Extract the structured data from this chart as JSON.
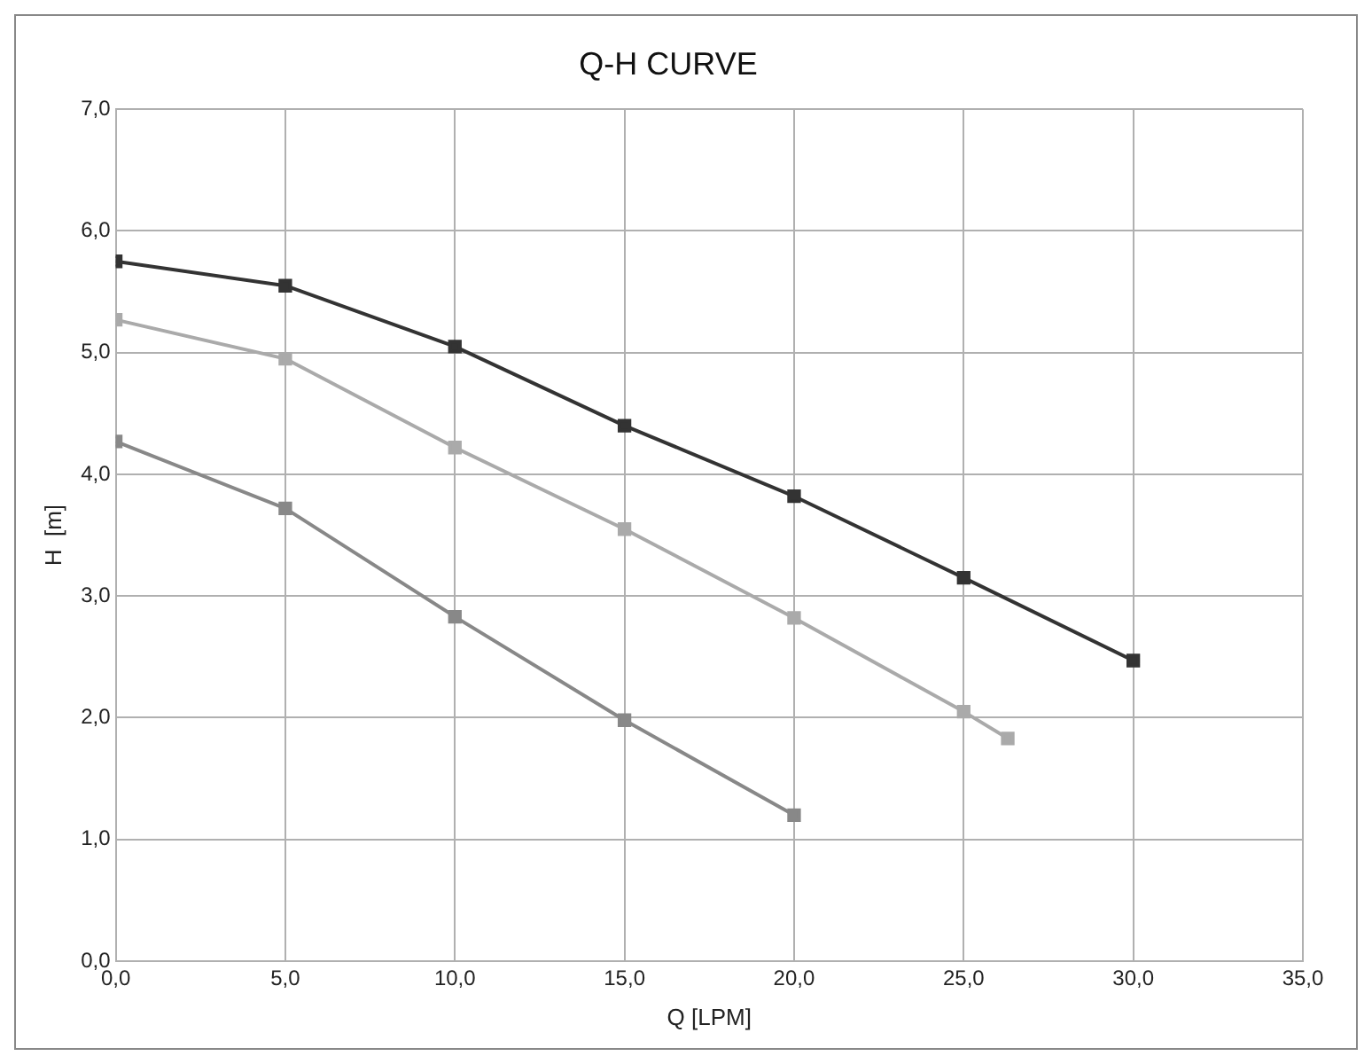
{
  "chart_data": {
    "type": "line",
    "title": "Q-H CURVE",
    "xlabel": "Q [LPM]",
    "ylabel": "H  [m]",
    "series": [
      {
        "color": "#333333",
        "x": [
          0,
          5,
          10,
          15,
          20,
          25,
          30
        ],
        "values": [
          5.75,
          5.55,
          5.05,
          4.4,
          3.82,
          3.15,
          2.47
        ]
      },
      {
        "color": "#aaaaaa",
        "x": [
          0,
          5,
          10,
          15,
          20,
          25,
          26.3
        ],
        "values": [
          5.27,
          4.95,
          4.22,
          3.55,
          2.82,
          2.05,
          1.83
        ]
      },
      {
        "color": "#888888",
        "x": [
          0,
          5,
          10,
          15,
          20
        ],
        "values": [
          4.27,
          3.72,
          2.83,
          1.98,
          1.2
        ]
      }
    ],
    "xlim": [
      0,
      35
    ],
    "ylim": [
      0,
      7
    ],
    "xticks": [
      {
        "value": 0,
        "label": "0,0"
      },
      {
        "value": 5,
        "label": "5,0"
      },
      {
        "value": 10,
        "label": "10,0"
      },
      {
        "value": 15,
        "label": "15,0"
      },
      {
        "value": 20,
        "label": "20,0"
      },
      {
        "value": 25,
        "label": "25,0"
      },
      {
        "value": 30,
        "label": "30,0"
      },
      {
        "value": 35,
        "label": "35,0"
      }
    ],
    "yticks": [
      {
        "value": 0,
        "label": "0,0"
      },
      {
        "value": 1,
        "label": "1,0"
      },
      {
        "value": 2,
        "label": "2,0"
      },
      {
        "value": 3,
        "label": "3,0"
      },
      {
        "value": 4,
        "label": "4,0"
      },
      {
        "value": 5,
        "label": "5,0"
      },
      {
        "value": 6,
        "label": "6,0"
      },
      {
        "value": 7,
        "label": "7,0"
      }
    ],
    "grid": true,
    "legend": false,
    "marker": "square",
    "line_style": "solid"
  }
}
